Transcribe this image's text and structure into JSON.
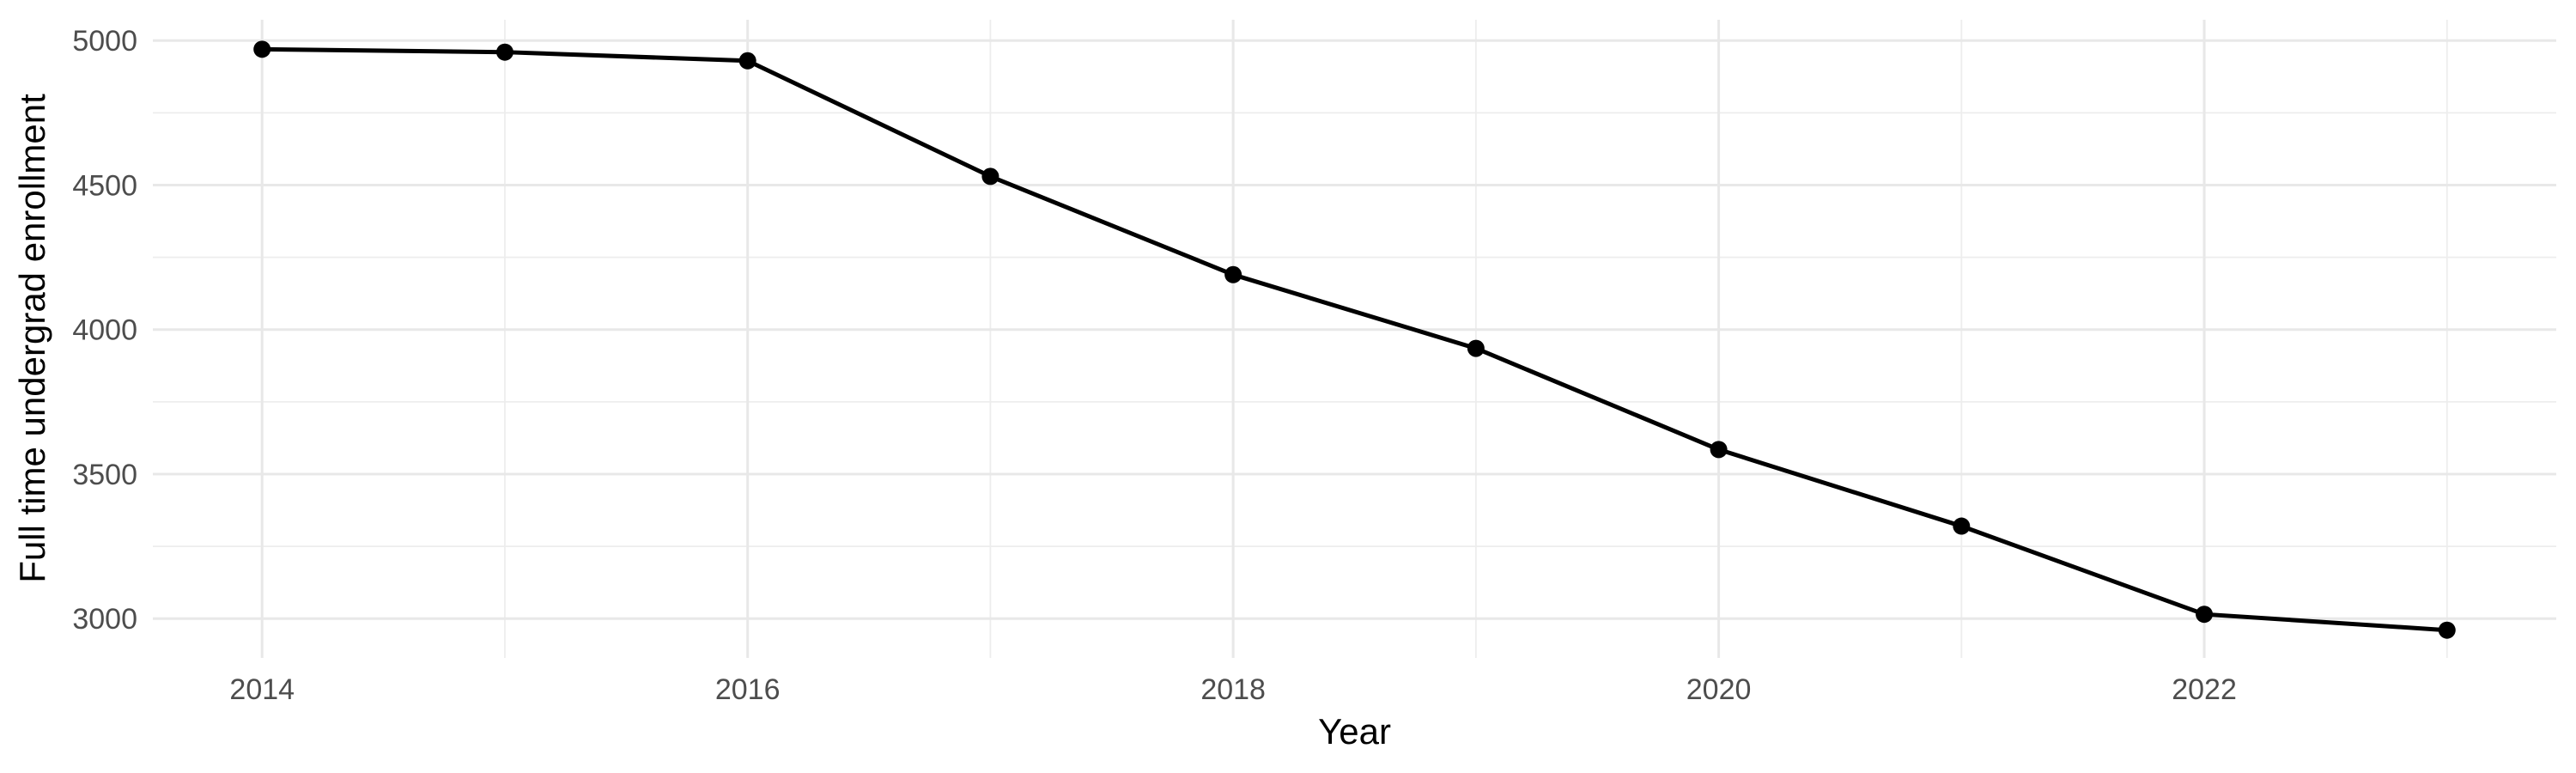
{
  "chart_data": {
    "type": "line",
    "title": "",
    "xlabel": "Year",
    "ylabel": "Full time undergrad enrollment",
    "x": [
      2014,
      2015,
      2016,
      2017,
      2018,
      2019,
      2020,
      2021,
      2022,
      2023
    ],
    "series": [
      {
        "name": "Full time undergrad enrollment",
        "values": [
          4970,
          4960,
          4930,
          4530,
          4190,
          3935,
          3585,
          3320,
          3015,
          2960
        ]
      }
    ],
    "x_major_ticks": [
      2014,
      2016,
      2018,
      2020,
      2022
    ],
    "x_minor_gridlines": [
      2015,
      2017,
      2019,
      2021,
      2023
    ],
    "y_major_ticks": [
      5000,
      4500,
      4000,
      3500,
      3000
    ],
    "y_minor_gridlines": [
      4750,
      4250,
      3750,
      3250
    ],
    "xlim": [
      2013.55,
      2023.45
    ],
    "ylim": [
      2864,
      5072
    ],
    "grid": "major+minor",
    "legend": "none",
    "marker": "filled-circle",
    "colors": {
      "line": "#000000",
      "point": "#000000",
      "grid_major": "#E8E8E8",
      "grid_minor": "#EDEDED",
      "tick_label": "#4D4D4D",
      "axis_title": "#000000",
      "background": "#FFFFFF"
    }
  }
}
